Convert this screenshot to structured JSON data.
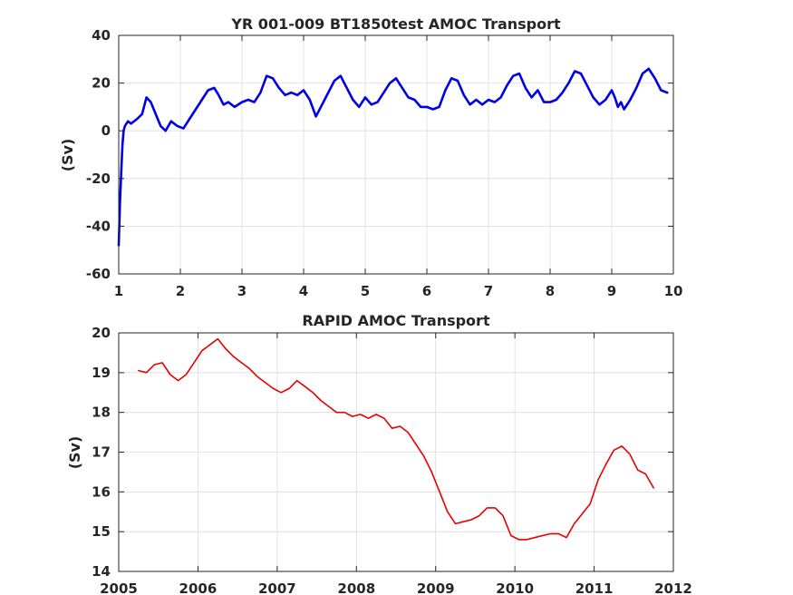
{
  "chart_data": [
    {
      "type": "line",
      "title": "YR 001-009 BT1850test AMOC Transport",
      "xlabel": "",
      "ylabel": "(Sv)",
      "xlim": [
        1,
        10
      ],
      "ylim": [
        -60,
        40
      ],
      "xticks": [
        1,
        2,
        3,
        4,
        5,
        6,
        7,
        8,
        9,
        10
      ],
      "yticks": [
        -60,
        -40,
        -20,
        0,
        20,
        40
      ],
      "grid": true,
      "series": [
        {
          "color": "#0000e6",
          "x": [
            1.0,
            1.02,
            1.04,
            1.06,
            1.08,
            1.1,
            1.15,
            1.2,
            1.3,
            1.38,
            1.45,
            1.52,
            1.6,
            1.68,
            1.76,
            1.85,
            1.95,
            2.05,
            2.15,
            2.25,
            2.35,
            2.45,
            2.55,
            2.62,
            2.7,
            2.78,
            2.88,
            3.0,
            3.1,
            3.2,
            3.3,
            3.4,
            3.5,
            3.6,
            3.7,
            3.8,
            3.9,
            4.0,
            4.1,
            4.2,
            4.3,
            4.4,
            4.5,
            4.6,
            4.7,
            4.8,
            4.9,
            5.0,
            5.1,
            5.2,
            5.3,
            5.4,
            5.5,
            5.6,
            5.7,
            5.8,
            5.9,
            6.0,
            6.1,
            6.2,
            6.3,
            6.4,
            6.5,
            6.6,
            6.7,
            6.8,
            6.9,
            7.0,
            7.1,
            7.2,
            7.3,
            7.4,
            7.5,
            7.6,
            7.7,
            7.8,
            7.9,
            8.0,
            8.1,
            8.2,
            8.3,
            8.4,
            8.5,
            8.6,
            8.7,
            8.8,
            8.9,
            9.0,
            9.05,
            9.1,
            9.15,
            9.2,
            9.3,
            9.4,
            9.5,
            9.6,
            9.7,
            9.8,
            9.9
          ],
          "y": [
            -48,
            -30,
            -18,
            -6,
            0,
            2,
            4,
            3,
            5,
            7,
            14,
            12,
            7,
            2,
            0,
            4,
            2,
            1,
            5,
            9,
            13,
            17,
            18,
            15,
            11,
            12,
            10,
            12,
            13,
            12,
            16,
            23,
            22,
            18,
            15,
            16,
            15,
            17,
            13,
            6,
            11,
            16,
            21,
            23,
            18,
            13,
            10,
            14,
            11,
            12,
            16,
            20,
            22,
            18,
            14,
            13,
            10,
            10,
            9,
            10,
            17,
            22,
            21,
            15,
            11,
            13,
            11,
            13,
            12,
            14,
            19,
            23,
            24,
            18,
            14,
            17,
            12,
            12,
            13,
            16,
            20,
            25,
            24,
            19,
            14,
            11,
            13,
            17,
            14,
            10,
            12,
            9,
            13,
            18,
            24,
            26,
            22,
            17,
            16
          ]
        }
      ]
    },
    {
      "type": "line",
      "title": "RAPID AMOC Transport",
      "xlabel": "",
      "ylabel": "(Sv)",
      "xlim": [
        2005,
        2012
      ],
      "ylim": [
        14,
        20
      ],
      "xticks": [
        2005,
        2006,
        2007,
        2008,
        2009,
        2010,
        2011,
        2012
      ],
      "yticks": [
        14,
        15,
        16,
        17,
        18,
        19,
        20
      ],
      "grid": true,
      "series": [
        {
          "color": "#e60000",
          "x": [
            2005.25,
            2005.35,
            2005.45,
            2005.55,
            2005.65,
            2005.75,
            2005.85,
            2005.95,
            2006.05,
            2006.15,
            2006.25,
            2006.35,
            2006.45,
            2006.55,
            2006.65,
            2006.75,
            2006.85,
            2006.95,
            2007.05,
            2007.15,
            2007.25,
            2007.35,
            2007.45,
            2007.55,
            2007.65,
            2007.75,
            2007.85,
            2007.95,
            2008.05,
            2008.15,
            2008.25,
            2008.35,
            2008.45,
            2008.55,
            2008.65,
            2008.75,
            2008.85,
            2008.95,
            2009.05,
            2009.15,
            2009.25,
            2009.35,
            2009.45,
            2009.55,
            2009.65,
            2009.75,
            2009.85,
            2009.95,
            2010.05,
            2010.15,
            2010.25,
            2010.35,
            2010.45,
            2010.55,
            2010.65,
            2010.75,
            2010.85,
            2010.95,
            2011.05,
            2011.15,
            2011.25,
            2011.35,
            2011.45,
            2011.55,
            2011.65,
            2011.75
          ],
          "y": [
            19.05,
            19.0,
            19.2,
            19.25,
            18.95,
            18.8,
            18.95,
            19.25,
            19.55,
            19.7,
            19.85,
            19.6,
            19.4,
            19.25,
            19.1,
            18.9,
            18.75,
            18.6,
            18.5,
            18.6,
            18.8,
            18.65,
            18.5,
            18.3,
            18.15,
            18.0,
            18.0,
            17.9,
            17.95,
            17.85,
            17.95,
            17.85,
            17.6,
            17.65,
            17.5,
            17.2,
            16.9,
            16.5,
            16.0,
            15.5,
            15.2,
            15.25,
            15.3,
            15.4,
            15.6,
            15.6,
            15.4,
            14.9,
            14.8,
            14.8,
            14.85,
            14.9,
            14.95,
            14.95,
            14.85,
            15.2,
            15.45,
            15.7,
            16.3,
            16.7,
            17.05,
            17.15,
            16.95,
            16.55,
            16.45,
            16.1
          ]
        }
      ]
    }
  ]
}
